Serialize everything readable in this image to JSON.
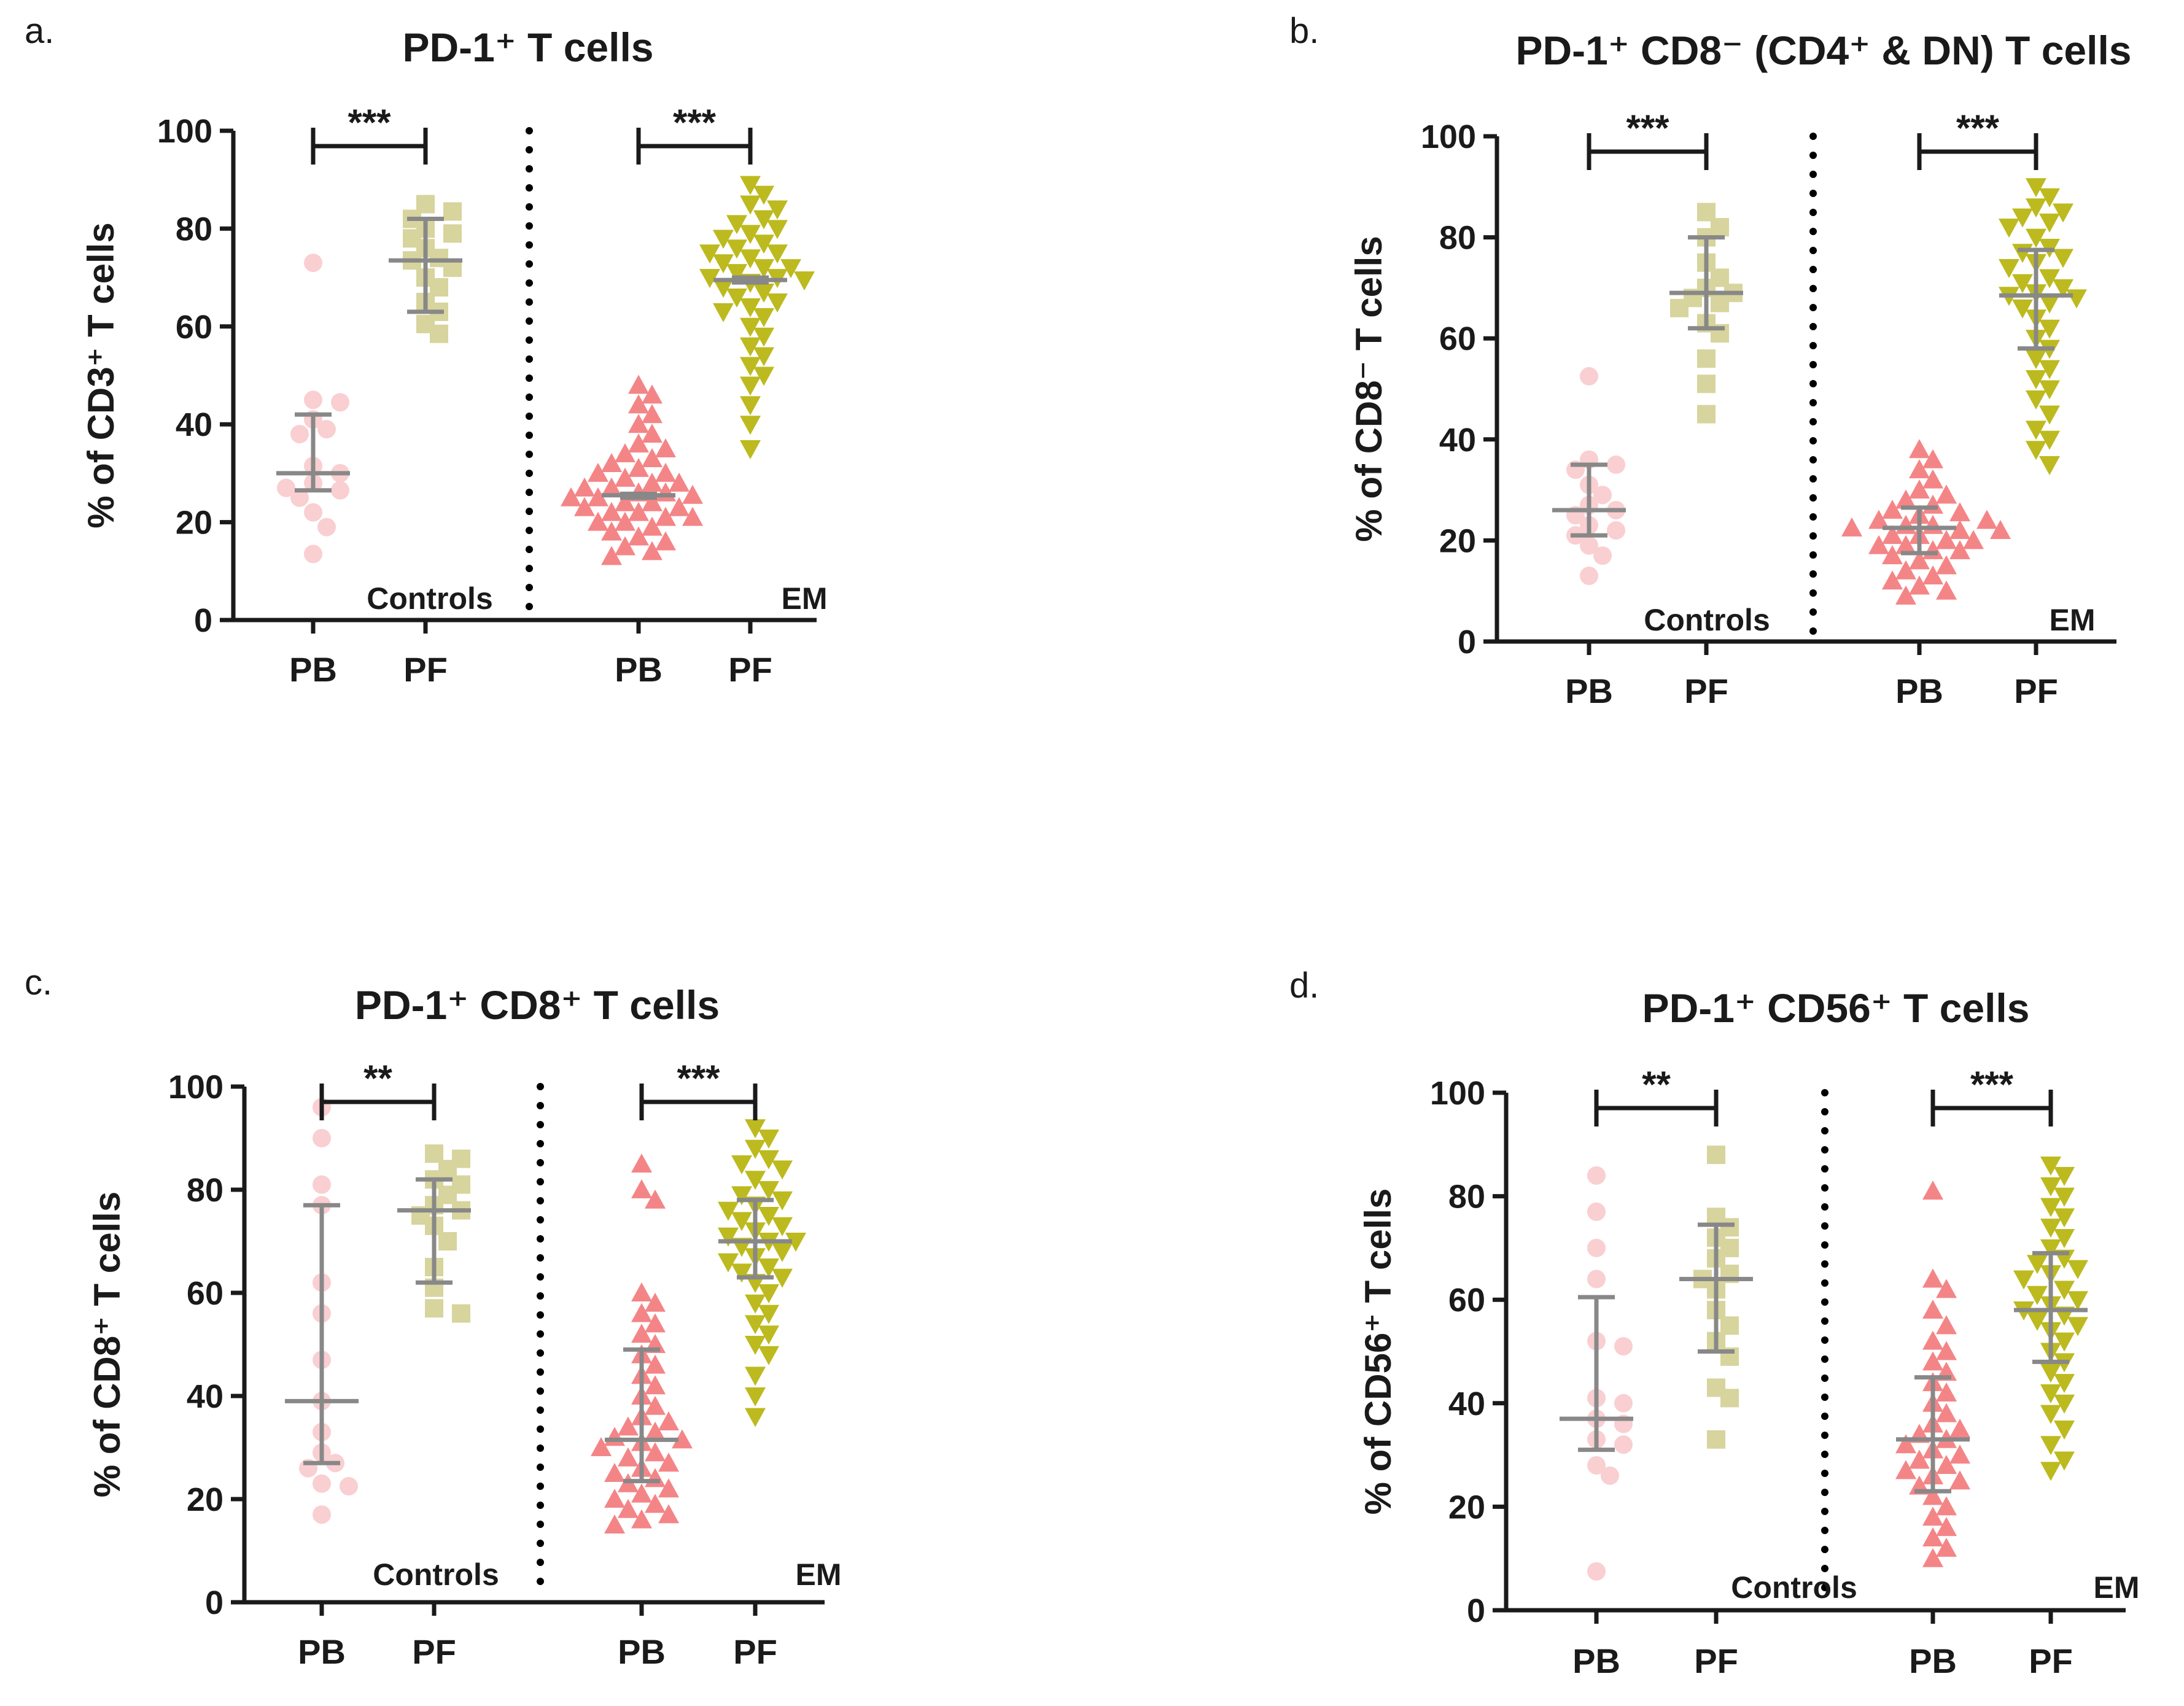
{
  "figure": {
    "colors": {
      "controls_pb": "#f9cfd1",
      "controls_pf": "#d7d49d",
      "em_pb": "#f48587",
      "em_pf": "#bcba1f",
      "error_bar": "#888888",
      "axis": "#1a1a1a"
    }
  },
  "chart_data": [
    {
      "type": "scatter",
      "panel_label": "a.",
      "title": "PD-1⁺ T cells",
      "ylabel": "% of CD3⁺ T cells",
      "xlabel": "",
      "ylim": [
        0,
        100
      ],
      "yticks": [
        "0",
        "20",
        "40",
        "60",
        "80",
        "100"
      ],
      "group_labels": [
        "Controls",
        "EM"
      ],
      "categories": [
        "PB",
        "PF",
        "PB",
        "PF"
      ],
      "significance": [
        "***",
        "***"
      ],
      "series": [
        {
          "name": "Controls PB",
          "group": "Controls",
          "category": "PB",
          "shape": "circle",
          "color": "#f9cfd1",
          "median": 30,
          "err_low": 26.5,
          "err_high": 42,
          "values": [
            73,
            45,
            44.5,
            41,
            39,
            38,
            31.5,
            30,
            28,
            27,
            26.5,
            25,
            22,
            19,
            13.5
          ]
        },
        {
          "name": "Controls PF",
          "group": "Controls",
          "category": "PF",
          "shape": "square",
          "color": "#d7d49d",
          "median": 73.5,
          "err_low": 63,
          "err_high": 82,
          "values": [
            85,
            83.5,
            82,
            80,
            79,
            78,
            76,
            74,
            73.5,
            72,
            70,
            68,
            65,
            63,
            60.5,
            58.5
          ]
        },
        {
          "name": "EM PB",
          "group": "EM",
          "category": "PB",
          "shape": "triangle-up",
          "color": "#f48587",
          "median": 25.5,
          "err_low": 25,
          "err_high": 25.8,
          "values": [
            48,
            46,
            44,
            42,
            40,
            38,
            36,
            35,
            34,
            33,
            32,
            31,
            30,
            30,
            29,
            28,
            28,
            27,
            27,
            26,
            26,
            25.5,
            25,
            25,
            24,
            24,
            23,
            23,
            22,
            22,
            21,
            21,
            20,
            20,
            19,
            18,
            17,
            16,
            15,
            14,
            13
          ]
        },
        {
          "name": "EM PF",
          "group": "EM",
          "category": "PF",
          "shape": "triangle-down",
          "color": "#bcba1f",
          "median": 69.5,
          "err_low": 69,
          "err_high": 70,
          "values": [
            89,
            87,
            85,
            84,
            82,
            81,
            80,
            79,
            78,
            77,
            76,
            75,
            75,
            74,
            73,
            72,
            72,
            71,
            70,
            70,
            69.5,
            69,
            68,
            67,
            66,
            65,
            64,
            63,
            62,
            60,
            58,
            56,
            54,
            52,
            50,
            48,
            44,
            40,
            35
          ]
        }
      ]
    },
    {
      "type": "scatter",
      "panel_label": "b.",
      "title": "PD-1⁺ CD8⁻ (CD4⁺ & DN) T cells",
      "ylabel": "% of CD8⁻ T cells",
      "xlabel": "",
      "ylim": [
        0,
        100
      ],
      "yticks": [
        "0",
        "20",
        "40",
        "60",
        "80",
        "100"
      ],
      "group_labels": [
        "Controls",
        "EM"
      ],
      "categories": [
        "PB",
        "PF",
        "PB",
        "PF"
      ],
      "significance": [
        "***",
        "***"
      ],
      "series": [
        {
          "name": "Controls PB",
          "group": "Controls",
          "category": "PB",
          "shape": "circle",
          "color": "#f9cfd1",
          "median": 26,
          "err_low": 21,
          "err_high": 35,
          "values": [
            52.5,
            36,
            35,
            34,
            31,
            29,
            27,
            26,
            25,
            23,
            22,
            21,
            19,
            17,
            13
          ]
        },
        {
          "name": "Controls PF",
          "group": "Controls",
          "category": "PF",
          "shape": "square",
          "color": "#d7d49d",
          "median": 69,
          "err_low": 62,
          "err_high": 80,
          "values": [
            85,
            82,
            80,
            75,
            72,
            70,
            69,
            68,
            67,
            66,
            63,
            61,
            56,
            51,
            45
          ]
        },
        {
          "name": "EM PB",
          "group": "EM",
          "category": "PB",
          "shape": "triangle-up",
          "color": "#f48587",
          "median": 22.5,
          "err_low": 17.5,
          "err_high": 26.5,
          "values": [
            38,
            36,
            34,
            32,
            30,
            29,
            28,
            27,
            26,
            25.5,
            25,
            24,
            24,
            23,
            23,
            22.5,
            22,
            22,
            21,
            21,
            20,
            20,
            19,
            19,
            18,
            18,
            17,
            16,
            15,
            14,
            13,
            12,
            11,
            10,
            9
          ]
        },
        {
          "name": "EM PF",
          "group": "EM",
          "category": "PF",
          "shape": "triangle-down",
          "color": "#bcba1f",
          "median": 68.5,
          "err_low": 58,
          "err_high": 77.5,
          "values": [
            90,
            88,
            86,
            85,
            84,
            83,
            82,
            80,
            78,
            77,
            76,
            75,
            74,
            72,
            71,
            70,
            69,
            68.5,
            68,
            67,
            66,
            64,
            62,
            60,
            58,
            56,
            54,
            52,
            50,
            48,
            45,
            42,
            40,
            38,
            35
          ]
        }
      ]
    },
    {
      "type": "scatter",
      "panel_label": "c.",
      "title": "PD-1⁺ CD8⁺ T cells",
      "ylabel": "% of CD8⁺ T cells",
      "xlabel": "",
      "ylim": [
        0,
        100
      ],
      "yticks": [
        "0",
        "20",
        "40",
        "60",
        "80",
        "100"
      ],
      "group_labels": [
        "Controls",
        "EM"
      ],
      "categories": [
        "PB",
        "PF",
        "PB",
        "PF"
      ],
      "significance": [
        "**",
        "***"
      ],
      "series": [
        {
          "name": "Controls PB",
          "group": "Controls",
          "category": "PB",
          "shape": "circle",
          "color": "#f9cfd1",
          "median": 39,
          "err_low": 27,
          "err_high": 77,
          "values": [
            96,
            90,
            81,
            77,
            62,
            56,
            47,
            39,
            33,
            29,
            27,
            26,
            23,
            22.5,
            17
          ]
        },
        {
          "name": "Controls PF",
          "group": "Controls",
          "category": "PF",
          "shape": "square",
          "color": "#d7d49d",
          "median": 76,
          "err_low": 62,
          "err_high": 82,
          "values": [
            87,
            86,
            84,
            82,
            81,
            79,
            77,
            76,
            75,
            73,
            70,
            65,
            61,
            57,
            56
          ]
        },
        {
          "name": "EM PB",
          "group": "EM",
          "category": "PB",
          "shape": "triangle-up",
          "color": "#f48587",
          "median": 31.5,
          "err_low": 23.5,
          "err_high": 49,
          "values": [
            85,
            80,
            78,
            60,
            58,
            56,
            54,
            52,
            50,
            48,
            46,
            44,
            42,
            40,
            38,
            36,
            35,
            34,
            33,
            32,
            31.5,
            31,
            30,
            29,
            28,
            27,
            26,
            25,
            24,
            23,
            22,
            21,
            20,
            19,
            18,
            17,
            16,
            15
          ]
        },
        {
          "name": "EM PF",
          "group": "EM",
          "category": "PF",
          "shape": "triangle-down",
          "color": "#bcba1f",
          "median": 70,
          "err_low": 63,
          "err_high": 78,
          "values": [
            92,
            90,
            88,
            86,
            85,
            84,
            82,
            80,
            79,
            78,
            77,
            76,
            75,
            74,
            73,
            72,
            71,
            70,
            70,
            69,
            68,
            67,
            66,
            65,
            64,
            63,
            62,
            60,
            58,
            56,
            54,
            52,
            50,
            48,
            44,
            40,
            36
          ]
        }
      ]
    },
    {
      "type": "scatter",
      "panel_label": "d.",
      "title": "PD-1⁺ CD56⁺ T cells",
      "ylabel": "% of CD56⁺ T cells",
      "xlabel": "",
      "ylim": [
        0,
        100
      ],
      "yticks": [
        "0",
        "20",
        "40",
        "60",
        "80",
        "100"
      ],
      "group_labels": [
        "Controls",
        "EM"
      ],
      "categories": [
        "PB",
        "PF",
        "PB",
        "PF"
      ],
      "significance": [
        "**",
        "***"
      ],
      "series": [
        {
          "name": "Controls PB",
          "group": "Controls",
          "category": "PB",
          "shape": "circle",
          "color": "#f9cfd1",
          "median": 37,
          "err_low": 31,
          "err_high": 60.5,
          "values": [
            84,
            77,
            70,
            64,
            52,
            51,
            41,
            40,
            37,
            36,
            33,
            32,
            28,
            26,
            7.5
          ]
        },
        {
          "name": "Controls PF",
          "group": "Controls",
          "category": "PF",
          "shape": "square",
          "color": "#d7d49d",
          "median": 64,
          "err_low": 50,
          "err_high": 74.5,
          "values": [
            88,
            76,
            74,
            72,
            70,
            68,
            65,
            64,
            62,
            58,
            55,
            52,
            49,
            43,
            41,
            33
          ]
        },
        {
          "name": "EM PB",
          "group": "EM",
          "category": "PB",
          "shape": "triangle-up",
          "color": "#f48587",
          "median": 33,
          "err_low": 23,
          "err_high": 45,
          "values": [
            81,
            64,
            62,
            58,
            55,
            52,
            50,
            48,
            46,
            44,
            42,
            40,
            38,
            36,
            35,
            34,
            33,
            32,
            31,
            30,
            29,
            28,
            27,
            26,
            25,
            24,
            22,
            20,
            18,
            16,
            14,
            12,
            10
          ]
        },
        {
          "name": "EM PF",
          "group": "EM",
          "category": "PF",
          "shape": "triangle-down",
          "color": "#bcba1f",
          "median": 58,
          "err_low": 48,
          "err_high": 69,
          "values": [
            86,
            84,
            82,
            80,
            78,
            76,
            74,
            72,
            70,
            68,
            67,
            66,
            65,
            64,
            62,
            61,
            60,
            59,
            58,
            57,
            56,
            55,
            54,
            52,
            50,
            48,
            46,
            44,
            42,
            40,
            38,
            35,
            32,
            29,
            27
          ]
        }
      ]
    }
  ]
}
